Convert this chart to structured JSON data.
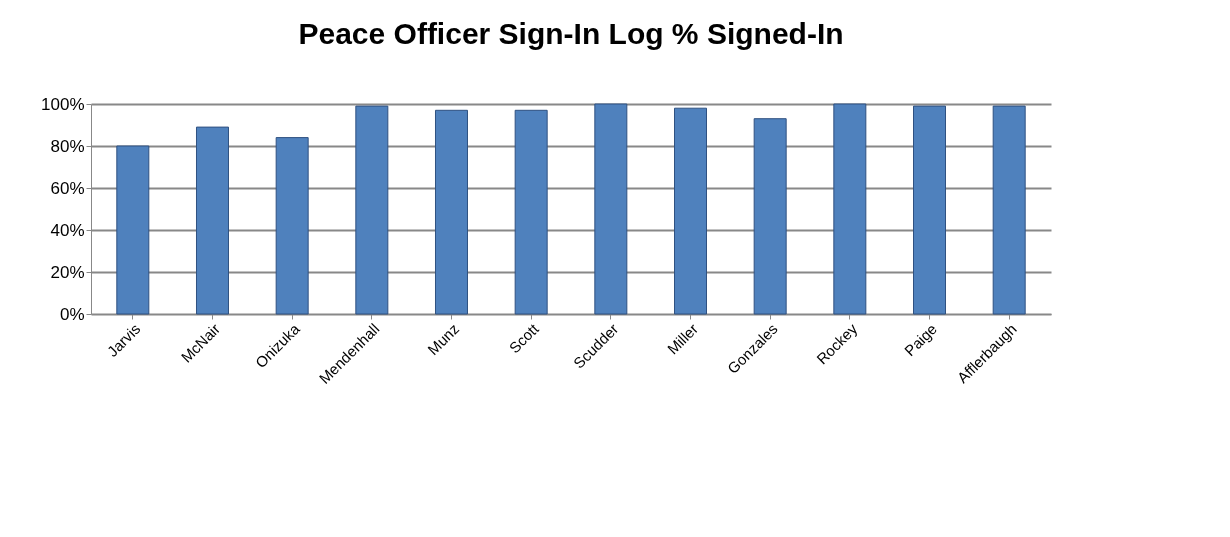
{
  "chart_data": {
    "type": "bar",
    "title": "Peace Officer Sign-In Log % Signed-In",
    "categories": [
      "Jarvis",
      "McNair",
      "Onizuka",
      "Mendenhall",
      "Munz",
      "Scott",
      "Scudder",
      "Miller",
      "Gonzales",
      "Rockey",
      "Paige",
      "Afflerbaugh"
    ],
    "values": [
      80,
      89,
      84,
      99,
      97,
      97,
      100,
      98,
      93,
      100,
      99,
      99
    ],
    "color": "#4f81bd",
    "ylim": [
      0,
      100
    ],
    "yticks": [
      {
        "value": 0,
        "label": "0%"
      },
      {
        "value": 20,
        "label": "20%"
      },
      {
        "value": 40,
        "label": "40%"
      },
      {
        "value": 60,
        "label": "60%"
      },
      {
        "value": 80,
        "label": "80%"
      },
      {
        "value": 100,
        "label": "100%"
      }
    ],
    "grid": "y"
  }
}
